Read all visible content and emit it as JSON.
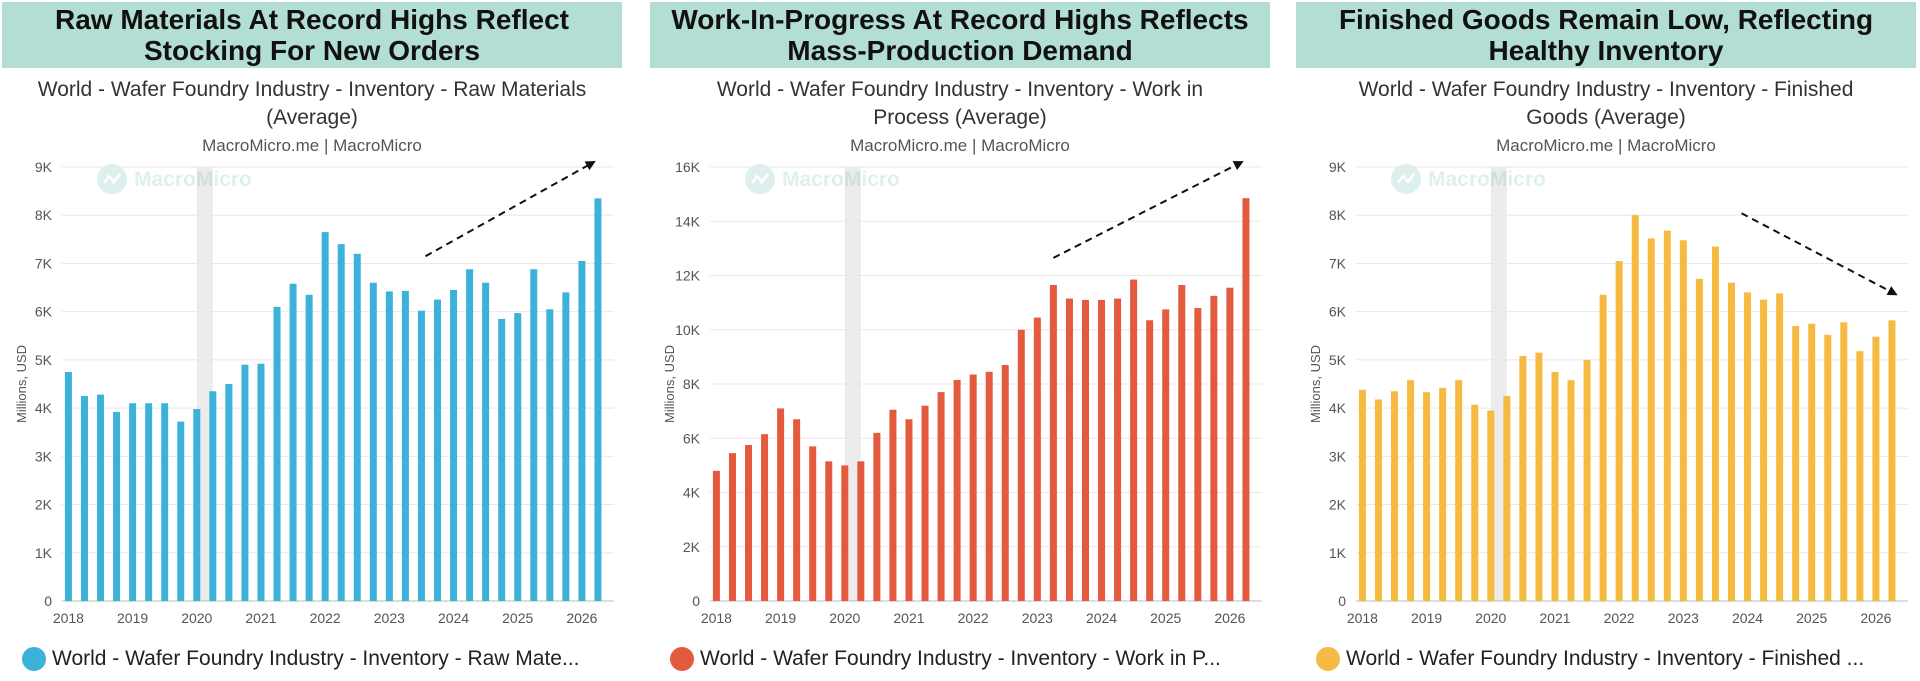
{
  "panels": [
    {
      "headline": "Raw Materials At Record Highs Reflect Stocking For New Orders",
      "chart_title": "World - Wafer Foundry Industry - Inventory - Raw Materials (Average)",
      "source": "MacroMicro.me | MacroMicro",
      "watermark": "MacroMicro",
      "legend": "World - Wafer Foundry Industry - Inventory - Raw Mate...",
      "color": "#3cb1da",
      "trend": "up"
    },
    {
      "headline": "Work-In-Progress At Record Highs Reflects Mass-Production Demand",
      "chart_title": "World - Wafer Foundry Industry - Inventory - Work in Process (Average)",
      "source": "MacroMicro.me | MacroMicro",
      "watermark": "MacroMicro",
      "legend": "World - Wafer Foundry Industry - Inventory - Work in P...",
      "color": "#e35a3e",
      "trend": "up"
    },
    {
      "headline": "Finished Goods Remain Low, Reflecting Healthy Inventory",
      "chart_title": "World - Wafer Foundry Industry - Inventory - Finished Goods (Average)",
      "source": "MacroMicro.me | MacroMicro",
      "watermark": "MacroMicro",
      "legend": "World - Wafer Foundry Industry - Inventory - Finished ...",
      "color": "#f4ba42",
      "trend": "down"
    }
  ],
  "chart_data": [
    {
      "type": "bar",
      "title": "World - Wafer Foundry Industry - Inventory - Raw Materials (Average)",
      "ylabel": "Millions, USD",
      "ylim": [
        0,
        9000
      ],
      "yticks": [
        0,
        1000,
        2000,
        3000,
        4000,
        5000,
        6000,
        7000,
        8000,
        9000
      ],
      "ytick_labels": [
        "0",
        "1K",
        "2K",
        "3K",
        "4K",
        "5K",
        "6K",
        "7K",
        "8K",
        "9K"
      ],
      "xlim": [
        2017.9,
        2026.5
      ],
      "xticks": [
        2018,
        2019,
        2020,
        2021,
        2022,
        2023,
        2024,
        2025,
        2026
      ],
      "xtick_labels": [
        "2018",
        "2019",
        "2020",
        "2021",
        "2022",
        "2023",
        "2024",
        "2025",
        "2026"
      ],
      "grid": true,
      "legend_position": "bottom",
      "shaded_period": [
        2020.0,
        2020.25
      ],
      "x": [
        2018.0,
        2018.25,
        2018.5,
        2018.75,
        2019.0,
        2019.25,
        2019.5,
        2019.75,
        2020.0,
        2020.25,
        2020.5,
        2020.75,
        2021.0,
        2021.25,
        2021.5,
        2021.75,
        2022.0,
        2022.25,
        2022.5,
        2022.75,
        2023.0,
        2023.25,
        2023.5,
        2023.75,
        2024.0,
        2024.25,
        2024.5,
        2024.75,
        2025.0,
        2025.25,
        2025.5,
        2025.75,
        2026.0,
        2026.25
      ],
      "series": [
        {
          "name": "World - Wafer Foundry Industry - Inventory - Raw Materials (Average)",
          "values": [
            4750,
            4250,
            4280,
            3920,
            4100,
            4100,
            4100,
            3720,
            3980,
            4350,
            4500,
            4900,
            4920,
            6100,
            6580,
            6350,
            7650,
            7400,
            7200,
            6600,
            6420,
            6430,
            6020,
            6250,
            6450,
            6880,
            6600,
            5850,
            5970,
            6880,
            6050,
            6400,
            7050,
            8350
          ]
        }
      ],
      "annotation": "dashed trend arrow pointing up"
    },
    {
      "type": "bar",
      "title": "World - Wafer Foundry Industry - Inventory - Work in Process (Average)",
      "ylabel": "Millions, USD",
      "ylim": [
        0,
        16000
      ],
      "yticks": [
        0,
        2000,
        4000,
        6000,
        8000,
        10000,
        12000,
        14000,
        16000
      ],
      "ytick_labels": [
        "0",
        "2K",
        "4K",
        "6K",
        "8K",
        "10K",
        "12K",
        "14K",
        "16K"
      ],
      "xlim": [
        2017.9,
        2026.5
      ],
      "xticks": [
        2018,
        2019,
        2020,
        2021,
        2022,
        2023,
        2024,
        2025,
        2026
      ],
      "xtick_labels": [
        "2018",
        "2019",
        "2020",
        "2021",
        "2022",
        "2023",
        "2024",
        "2025",
        "2026"
      ],
      "grid": true,
      "legend_position": "bottom",
      "shaded_period": [
        2020.0,
        2020.25
      ],
      "x": [
        2018.0,
        2018.25,
        2018.5,
        2018.75,
        2019.0,
        2019.25,
        2019.5,
        2019.75,
        2020.0,
        2020.25,
        2020.5,
        2020.75,
        2021.0,
        2021.25,
        2021.5,
        2021.75,
        2022.0,
        2022.25,
        2022.5,
        2022.75,
        2023.0,
        2023.25,
        2023.5,
        2023.75,
        2024.0,
        2024.25,
        2024.5,
        2024.75,
        2025.0,
        2025.25,
        2025.5,
        2025.75,
        2026.0,
        2026.25
      ],
      "series": [
        {
          "name": "World - Wafer Foundry Industry - Inventory - Work in Process (Average)",
          "values": [
            4800,
            5450,
            5750,
            6150,
            7100,
            6700,
            5700,
            5150,
            5000,
            5150,
            6200,
            7050,
            6700,
            7200,
            7700,
            8150,
            8350,
            8450,
            8700,
            10000,
            10450,
            11650,
            11150,
            11100,
            11100,
            11150,
            11850,
            10350,
            10750,
            11650,
            10800,
            11250,
            11550,
            14850
          ]
        }
      ],
      "annotation": "dashed trend arrow pointing up"
    },
    {
      "type": "bar",
      "title": "World - Wafer Foundry Industry - Inventory - Finished Goods (Average)",
      "ylabel": "Millions, USD",
      "ylim": [
        0,
        9000
      ],
      "yticks": [
        0,
        1000,
        2000,
        3000,
        4000,
        5000,
        6000,
        7000,
        8000,
        9000
      ],
      "ytick_labels": [
        "0",
        "1K",
        "2K",
        "3K",
        "4K",
        "5K",
        "6K",
        "7K",
        "8K",
        "9K"
      ],
      "xlim": [
        2017.9,
        2026.5
      ],
      "xticks": [
        2018,
        2019,
        2020,
        2021,
        2022,
        2023,
        2024,
        2025,
        2026
      ],
      "xtick_labels": [
        "2018",
        "2019",
        "2020",
        "2021",
        "2022",
        "2023",
        "2024",
        "2025",
        "2026"
      ],
      "grid": true,
      "legend_position": "bottom",
      "shaded_period": [
        2020.0,
        2020.25
      ],
      "x": [
        2018.0,
        2018.25,
        2018.5,
        2018.75,
        2019.0,
        2019.25,
        2019.5,
        2019.75,
        2020.0,
        2020.25,
        2020.5,
        2020.75,
        2021.0,
        2021.25,
        2021.5,
        2021.75,
        2022.0,
        2022.25,
        2022.5,
        2022.75,
        2023.0,
        2023.25,
        2023.5,
        2023.75,
        2024.0,
        2024.25,
        2024.5,
        2024.75,
        2025.0,
        2025.25,
        2025.5,
        2025.75,
        2026.0,
        2026.25
      ],
      "series": [
        {
          "name": "World - Wafer Foundry Industry - Inventory - Finished Goods (Average)",
          "values": [
            4380,
            4180,
            4350,
            4580,
            4330,
            4420,
            4580,
            4070,
            3950,
            4250,
            5080,
            5150,
            4750,
            4580,
            5000,
            6350,
            7050,
            8000,
            7520,
            7680,
            7480,
            6680,
            7350,
            6600,
            6400,
            6250,
            6380,
            5700,
            5750,
            5520,
            5780,
            5180,
            5480,
            5820
          ]
        }
      ],
      "annotation": "dashed trend arrow pointing down"
    }
  ]
}
